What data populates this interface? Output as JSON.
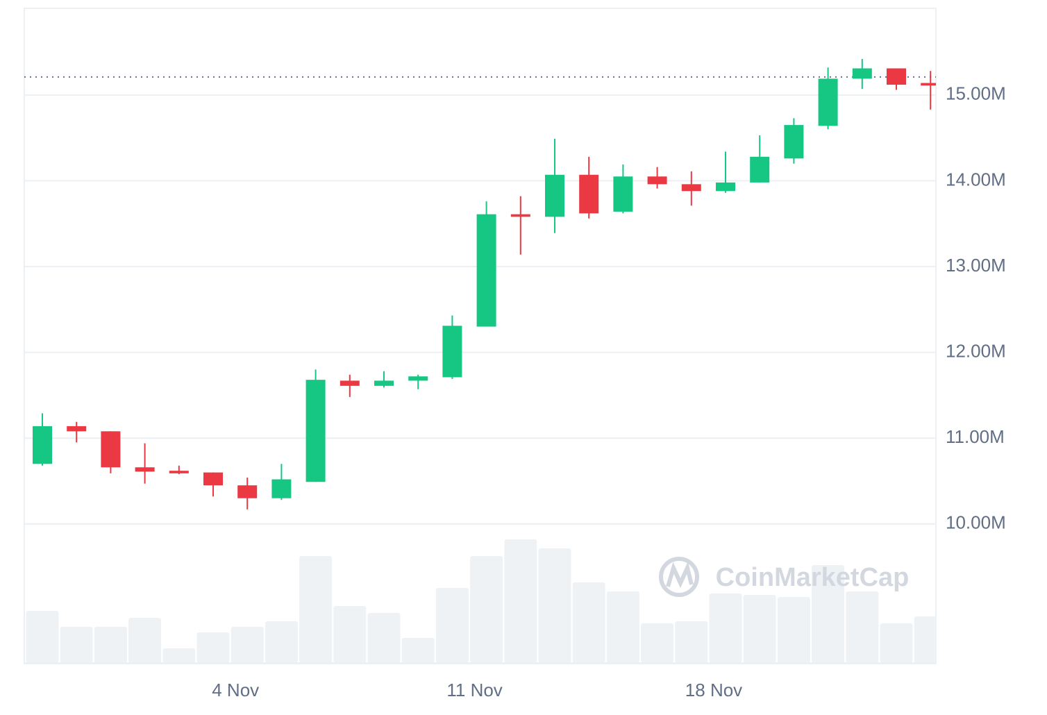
{
  "chart_data": {
    "type": "candlestick",
    "watermark": "CoinMarketCap",
    "categories": [
      null,
      null,
      null,
      null,
      null,
      null,
      "4 Nov",
      null,
      null,
      null,
      null,
      null,
      null,
      "11 Nov",
      null,
      null,
      null,
      null,
      null,
      null,
      "18 Nov",
      null,
      null,
      null,
      null,
      null,
      null
    ],
    "open": [
      10700000,
      11140000,
      11080000,
      10660000,
      10620000,
      10600000,
      10450000,
      10300000,
      10490000,
      11670000,
      11610000,
      11670000,
      11710000,
      12300000,
      13610000,
      13580000,
      14070000,
      13640000,
      14050000,
      13960000,
      13880000,
      13980000,
      14260000,
      14640000,
      15190000,
      15310000,
      15140000
    ],
    "high": [
      11290000,
      11190000,
      11080000,
      10940000,
      10680000,
      10600000,
      10540000,
      10700000,
      11800000,
      11740000,
      11780000,
      11740000,
      12430000,
      13760000,
      13820000,
      14490000,
      14280000,
      14190000,
      14160000,
      14110000,
      14340000,
      14530000,
      14730000,
      15320000,
      15420000,
      15310000,
      15280000
    ],
    "low": [
      10680000,
      10950000,
      10590000,
      10470000,
      10580000,
      10320000,
      10170000,
      10280000,
      10490000,
      11480000,
      11590000,
      11570000,
      11690000,
      12300000,
      13140000,
      13390000,
      13560000,
      13620000,
      13910000,
      13710000,
      13860000,
      13980000,
      14200000,
      14600000,
      15070000,
      15060000,
      14830000
    ],
    "close": [
      11140000,
      11080000,
      10660000,
      10610000,
      10590000,
      10450000,
      10300000,
      10520000,
      11680000,
      11610000,
      11670000,
      11720000,
      12310000,
      13610000,
      13580000,
      14070000,
      13620000,
      14050000,
      13960000,
      13880000,
      13980000,
      14280000,
      14650000,
      15190000,
      15310000,
      15120000,
      15110000
    ],
    "volume": [
      75,
      52,
      52,
      65,
      21,
      44,
      52,
      60,
      154,
      82,
      72,
      36,
      108,
      154,
      178,
      165,
      116,
      103,
      57,
      60,
      100,
      98,
      95,
      141,
      103,
      57,
      67
    ],
    "up_color": "#16c784",
    "down_color": "#ea3943",
    "volume_color": "#eff2f5",
    "current_price": 15210000,
    "ylim": [
      8380000,
      16010000
    ],
    "yticks": [
      {
        "value": 10000000,
        "label": "10.00M"
      },
      {
        "value": 11000000,
        "label": "11.00M"
      },
      {
        "value": 12000000,
        "label": "12.00M"
      },
      {
        "value": 13000000,
        "label": "13.00M"
      },
      {
        "value": 14000000,
        "label": "14.00M"
      },
      {
        "value": 15000000,
        "label": "15.00M"
      }
    ],
    "grid": true
  }
}
